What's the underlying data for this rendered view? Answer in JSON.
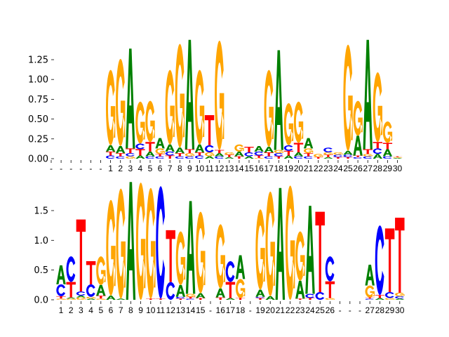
{
  "chart_data": [
    {
      "type": "logo",
      "title": "",
      "ylabel": "",
      "xlabel": "",
      "ylim": [
        0,
        1.5
      ],
      "yticks": [
        "0.00",
        "0.25",
        "0.50",
        "0.75",
        "1.00",
        "1.25"
      ],
      "ytick_values": [
        0,
        0.25,
        0.5,
        0.75,
        1.0,
        1.25
      ],
      "colors": {
        "A": "#008000",
        "C": "#0000ff",
        "G": "#ffa500",
        "T": "#ff0000"
      },
      "columns": [
        {
          "label": "-",
          "stack": []
        },
        {
          "label": "-",
          "stack": []
        },
        {
          "label": "-",
          "stack": []
        },
        {
          "label": "-",
          "stack": []
        },
        {
          "label": "-",
          "stack": []
        },
        {
          "label": "-",
          "stack": []
        },
        {
          "label": "1",
          "stack": [
            [
              "C",
              0.04
            ],
            [
              "T",
              0.05
            ],
            [
              "A",
              0.08
            ],
            [
              "G",
              0.95
            ]
          ]
        },
        {
          "label": "2",
          "stack": [
            [
              "C",
              0.03
            ],
            [
              "T",
              0.04
            ],
            [
              "A",
              0.09
            ],
            [
              "G",
              1.1
            ]
          ]
        },
        {
          "label": "3",
          "stack": [
            [
              "G",
              0.03
            ],
            [
              "C",
              0.04
            ],
            [
              "T",
              0.06
            ],
            [
              "A",
              1.26
            ]
          ]
        },
        {
          "label": "4",
          "stack": [
            [
              "A",
              0.04
            ],
            [
              "T",
              0.08
            ],
            [
              "C",
              0.07
            ],
            [
              "G",
              0.53
            ]
          ]
        },
        {
          "label": "5",
          "stack": [
            [
              "C",
              0.03
            ],
            [
              "A",
              0.06
            ],
            [
              "T",
              0.12
            ],
            [
              "G",
              0.52
            ]
          ]
        },
        {
          "label": "6",
          "stack": [
            [
              "C",
              0.03
            ],
            [
              "T",
              0.03
            ],
            [
              "G",
              0.07
            ],
            [
              "A",
              0.13
            ]
          ]
        },
        {
          "label": "7",
          "stack": [
            [
              "T",
              0.04
            ],
            [
              "C",
              0.05
            ],
            [
              "A",
              0.09
            ],
            [
              "G",
              0.94
            ]
          ]
        },
        {
          "label": "8",
          "stack": [
            [
              "C",
              0.03
            ],
            [
              "T",
              0.04
            ],
            [
              "A",
              0.07
            ],
            [
              "G",
              1.31
            ]
          ]
        },
        {
          "label": "9",
          "stack": [
            [
              "C",
              0.03
            ],
            [
              "G",
              0.04
            ],
            [
              "T",
              0.05
            ],
            [
              "A",
              1.38
            ]
          ]
        },
        {
          "label": "10",
          "stack": [
            [
              "C",
              0.04
            ],
            [
              "T",
              0.04
            ],
            [
              "A",
              0.1
            ],
            [
              "G",
              0.94
            ]
          ]
        },
        {
          "label": "11",
          "stack": [
            [
              "A",
              0.03
            ],
            [
              "G",
              0.05
            ],
            [
              "C",
              0.09
            ],
            [
              "T",
              0.38
            ]
          ]
        },
        {
          "label": "12",
          "stack": [
            [
              "C",
              0.03
            ],
            [
              "A",
              0.04
            ],
            [
              "T",
              0.04
            ],
            [
              "G",
              1.38
            ]
          ]
        },
        {
          "label": "13",
          "stack": [
            [
              "A",
              0.02
            ],
            [
              "T",
              0.03
            ],
            [
              "G",
              0.03
            ]
          ]
        },
        {
          "label": "14",
          "stack": [
            [
              "T",
              0.03
            ],
            [
              "A",
              0.06
            ],
            [
              "G",
              0.09
            ]
          ]
        },
        {
          "label": "15",
          "stack": [
            [
              "A",
              0.03
            ],
            [
              "C",
              0.05
            ],
            [
              "T",
              0.07
            ]
          ]
        },
        {
          "label": "16",
          "stack": [
            [
              "G",
              0.01
            ],
            [
              "T",
              0.03
            ],
            [
              "C",
              0.05
            ],
            [
              "A",
              0.07
            ]
          ]
        },
        {
          "label": "17",
          "stack": [
            [
              "C",
              0.03
            ],
            [
              "T",
              0.05
            ],
            [
              "A",
              0.07
            ],
            [
              "G",
              0.97
            ]
          ]
        },
        {
          "label": "18",
          "stack": [
            [
              "T",
              0.03
            ],
            [
              "C",
              0.04
            ],
            [
              "G",
              0.04
            ],
            [
              "A",
              1.26
            ]
          ]
        },
        {
          "label": "19",
          "stack": [
            [
              "A",
              0.04
            ],
            [
              "T",
              0.06
            ],
            [
              "C",
              0.07
            ],
            [
              "G",
              0.53
            ]
          ]
        },
        {
          "label": "20",
          "stack": [
            [
              "C",
              0.03
            ],
            [
              "A",
              0.05
            ],
            [
              "T",
              0.12
            ],
            [
              "G",
              0.52
            ]
          ]
        },
        {
          "label": "21",
          "stack": [
            [
              "C",
              0.03
            ],
            [
              "T",
              0.04
            ],
            [
              "G",
              0.06
            ],
            [
              "A",
              0.13
            ]
          ]
        },
        {
          "label": "22",
          "stack": [
            [
              "T",
              0.02
            ],
            [
              "G",
              0.04
            ]
          ]
        },
        {
          "label": "23",
          "stack": [
            [
              "A",
              0.02
            ],
            [
              "T",
              0.03
            ],
            [
              "G",
              0.03
            ],
            [
              "C",
              0.06
            ]
          ]
        },
        {
          "label": "24",
          "stack": [
            [
              "T",
              0.02
            ],
            [
              "C",
              0.03
            ],
            [
              "G",
              0.03
            ]
          ]
        },
        {
          "label": "25",
          "stack": [
            [
              "T",
              0.02
            ],
            [
              "C",
              0.03
            ],
            [
              "A",
              0.05
            ],
            [
              "G",
              1.34
            ]
          ]
        },
        {
          "label": "26",
          "stack": [
            [
              "C",
              0.02
            ],
            [
              "T",
              0.02
            ],
            [
              "A",
              0.25
            ],
            [
              "G",
              0.44
            ]
          ]
        },
        {
          "label": "27",
          "stack": [
            [
              "C",
              0.03
            ],
            [
              "G",
              0.03
            ],
            [
              "T",
              0.06
            ],
            [
              "A",
              1.38
            ]
          ]
        },
        {
          "label": "28",
          "stack": [
            [
              "A",
              0.06
            ],
            [
              "C",
              0.07
            ],
            [
              "T",
              0.08
            ],
            [
              "G",
              0.88
            ]
          ]
        },
        {
          "label": "29",
          "stack": [
            [
              "C",
              0.03
            ],
            [
              "A",
              0.09
            ],
            [
              "T",
              0.08
            ],
            [
              "G",
              0.27
            ]
          ]
        },
        {
          "label": "30",
          "stack": [
            [
              "A",
              0.01
            ],
            [
              "G",
              0.01
            ],
            [
              "T",
              0.01
            ]
          ]
        }
      ]
    },
    {
      "type": "logo",
      "title": "",
      "ylabel": "",
      "xlabel": "",
      "ylim": [
        0,
        2.0
      ],
      "yticks": [
        "0.0",
        "0.5",
        "1.0",
        "1.5"
      ],
      "ytick_values": [
        0,
        0.5,
        1.0,
        1.5
      ],
      "colors": {
        "A": "#008000",
        "C": "#0000ff",
        "G": "#ffa500",
        "T": "#ff0000"
      },
      "columns": [
        {
          "label": "1",
          "stack": [
            [
              "G",
              0.02
            ],
            [
              "T",
              0.04
            ],
            [
              "C",
              0.2
            ],
            [
              "A",
              0.32
            ]
          ]
        },
        {
          "label": "2",
          "stack": [
            [
              "G",
              0.02
            ],
            [
              "A",
              0.02
            ],
            [
              "T",
              0.26
            ],
            [
              "C",
              0.43
            ]
          ]
        },
        {
          "label": "3",
          "stack": [
            [
              "G",
              0.04
            ],
            [
              "A",
              0.03
            ],
            [
              "C",
              0.07
            ],
            [
              "T",
              1.21
            ]
          ]
        },
        {
          "label": "4",
          "stack": [
            [
              "A",
              0.02
            ],
            [
              "G",
              0.03
            ],
            [
              "C",
              0.21
            ],
            [
              "T",
              0.39
            ]
          ]
        },
        {
          "label": "5",
          "stack": [
            [
              "G",
              0.02
            ],
            [
              "T",
              0.05
            ],
            [
              "A",
              0.18
            ],
            [
              "G",
              0.48
            ]
          ]
        },
        {
          "label": "6",
          "stack": [
            [
              "A",
              0.07
            ],
            [
              "G",
              1.61
            ]
          ]
        },
        {
          "label": "7",
          "stack": [
            [
              "A",
              0.02
            ],
            [
              "G",
              1.85
            ]
          ]
        },
        {
          "label": "8",
          "stack": [
            [
              "A",
              1.98
            ]
          ]
        },
        {
          "label": "9",
          "stack": [
            [
              "G",
              1.97
            ]
          ]
        },
        {
          "label": "10",
          "stack": [
            [
              "T",
              0.02
            ],
            [
              "G",
              1.86
            ]
          ]
        },
        {
          "label": "11",
          "stack": [
            [
              "T",
              0.02
            ],
            [
              "C",
              1.89
            ]
          ]
        },
        {
          "label": "12",
          "stack": [
            [
              "C",
              0.3
            ],
            [
              "T",
              0.87
            ]
          ]
        },
        {
          "label": "13",
          "stack": [
            [
              "T",
              0.02
            ],
            [
              "C",
              0.03
            ],
            [
              "A",
              0.2
            ],
            [
              "G",
              0.9
            ]
          ]
        },
        {
          "label": "14",
          "stack": [
            [
              "C",
              0.02
            ],
            [
              "T",
              0.03
            ],
            [
              "G",
              0.05
            ],
            [
              "A",
              1.56
            ]
          ]
        },
        {
          "label": "15",
          "stack": [
            [
              "T",
              0.03
            ],
            [
              "A",
              0.08
            ],
            [
              "G",
              1.37
            ]
          ]
        },
        {
          "label": "-",
          "stack": []
        },
        {
          "label": "16",
          "stack": [
            [
              "T",
              0.04
            ],
            [
              "A",
              0.15
            ],
            [
              "G",
              1.08
            ]
          ]
        },
        {
          "label": "17",
          "stack": [
            [
              "A",
              0.03
            ],
            [
              "T",
              0.27
            ],
            [
              "C",
              0.35
            ]
          ]
        },
        {
          "label": "18",
          "stack": [
            [
              "T",
              0.03
            ],
            [
              "G",
              0.32
            ],
            [
              "A",
              0.4
            ]
          ]
        },
        {
          "label": "-",
          "stack": []
        },
        {
          "label": "19",
          "stack": [
            [
              "T",
              0.03
            ],
            [
              "C",
              0.02
            ],
            [
              "A",
              0.12
            ],
            [
              "G",
              1.35
            ]
          ]
        },
        {
          "label": "20",
          "stack": [
            [
              "A",
              0.06
            ],
            [
              "G",
              1.76
            ]
          ]
        },
        {
          "label": "21",
          "stack": [
            [
              "A",
              1.88
            ]
          ]
        },
        {
          "label": "22",
          "stack": [
            [
              "G",
              1.92
            ]
          ]
        },
        {
          "label": "23",
          "stack": [
            [
              "T",
              0.02
            ],
            [
              "A",
              0.3
            ],
            [
              "G",
              0.83
            ]
          ]
        },
        {
          "label": "24",
          "stack": [
            [
              "T",
              0.03
            ],
            [
              "C",
              0.07
            ],
            [
              "A",
              1.48
            ]
          ]
        },
        {
          "label": "25",
          "stack": [
            [
              "C",
              0.13
            ],
            [
              "T",
              1.35
            ]
          ]
        },
        {
          "label": "26",
          "stack": [
            [
              "G",
              0.03
            ],
            [
              "T",
              0.28
            ],
            [
              "C",
              0.42
            ]
          ]
        },
        {
          "label": "-",
          "stack": []
        },
        {
          "label": "-",
          "stack": []
        },
        {
          "label": "-",
          "stack": []
        },
        {
          "label": "27",
          "stack": [
            [
              "C",
              0.02
            ],
            [
              "T",
              0.02
            ],
            [
              "G",
              0.2
            ],
            [
              "A",
              0.35
            ]
          ]
        },
        {
          "label": "28",
          "stack": [
            [
              "A",
              0.03
            ],
            [
              "T",
              0.05
            ],
            [
              "C",
              1.17
            ]
          ]
        },
        {
          "label": "29",
          "stack": [
            [
              "G",
              0.03
            ],
            [
              "C",
              0.1
            ],
            [
              "T",
              1.07
            ]
          ]
        },
        {
          "label": "30",
          "stack": [
            [
              "A",
              0.02
            ],
            [
              "C",
              0.04
            ],
            [
              "G",
              0.06
            ],
            [
              "T",
              1.26
            ]
          ]
        }
      ]
    }
  ]
}
